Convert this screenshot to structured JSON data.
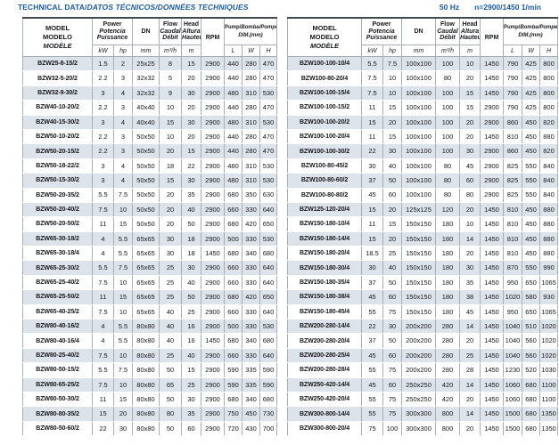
{
  "header": {
    "title_en": "TECHNICAL DATA/",
    "title_intl": "DATOS TÉCNICOS/DONNÉES TECHNIQUES",
    "frequency": "50 Hz",
    "speed": "n=2900/1450 1/min"
  },
  "colors": {
    "accent_blue": "#1a5a9e",
    "row_stripe": "#dce3ea"
  },
  "columns": {
    "model": {
      "en": "MODEL",
      "es": "MODELO",
      "fr": "MODÈLE"
    },
    "power": {
      "en": "Power",
      "es": "Potencia",
      "fr": "Puissance",
      "units": [
        "kW",
        "hp"
      ]
    },
    "dn": {
      "label": "DN",
      "unit": "mm"
    },
    "flow": {
      "en": "Flow",
      "es": "Caudal",
      "fr": "Débit",
      "unit": "m³/h"
    },
    "head": {
      "en": "Head",
      "es": "Altura",
      "fr": "Hauteur",
      "unit": "m"
    },
    "rpm": {
      "label": "RPM"
    },
    "dim": {
      "en": "Pump/",
      "intl": "Bomba/Pompe",
      "sub": "DIM.(mm)",
      "units": [
        "L",
        "W",
        "H"
      ]
    }
  },
  "tables": [
    {
      "name": "left",
      "rows": [
        [
          "BZW25-8-15/2",
          "1.5",
          "2",
          "25x25",
          "8",
          "15",
          "2900",
          "440",
          "280",
          "470"
        ],
        [
          "BZW32-5-20/2",
          "2.2",
          "3",
          "32x32",
          "5",
          "20",
          "2900",
          "440",
          "280",
          "470"
        ],
        [
          "BZW32-9-30/2",
          "3",
          "4",
          "32x32",
          "9",
          "30",
          "2900",
          "480",
          "310",
          "530"
        ],
        [
          "BZW40-10-20/2",
          "2.2",
          "3",
          "40x40",
          "10",
          "20",
          "2900",
          "440",
          "280",
          "470"
        ],
        [
          "BZW40-15-30/2",
          "3",
          "4",
          "40x40",
          "15",
          "30",
          "2900",
          "480",
          "310",
          "530"
        ],
        [
          "BZW50-10-20/2",
          "2.2",
          "3",
          "50x50",
          "10",
          "20",
          "2900",
          "440",
          "280",
          "470"
        ],
        [
          "BZW50-20-15/2",
          "2.2",
          "3",
          "50x50",
          "20",
          "15",
          "2900",
          "440",
          "280",
          "470"
        ],
        [
          "BZW50-18-22/2",
          "3",
          "4",
          "50x50",
          "18",
          "22",
          "2900",
          "480",
          "310",
          "530"
        ],
        [
          "BZW50-15-30/2",
          "3",
          "4",
          "50x50",
          "15",
          "30",
          "2900",
          "480",
          "310",
          "530"
        ],
        [
          "BZW50-20-35/2",
          "5.5",
          "7.5",
          "50x50",
          "20",
          "35",
          "2900",
          "680",
          "350",
          "630"
        ],
        [
          "BZW50-20-40/2",
          "7.5",
          "10",
          "50x50",
          "20",
          "40",
          "2900",
          "660",
          "330",
          "640"
        ],
        [
          "BZW50-20-50/2",
          "11",
          "15",
          "50x50",
          "20",
          "50",
          "2900",
          "680",
          "420",
          "650"
        ],
        [
          "BZW65-30-18/2",
          "4",
          "5.5",
          "65x65",
          "30",
          "18",
          "2900",
          "500",
          "330",
          "530"
        ],
        [
          "BZW65-30-18/4",
          "4",
          "5.5",
          "65x65",
          "30",
          "18",
          "1450",
          "680",
          "340",
          "680"
        ],
        [
          "BZW65-25-30/2",
          "5.5",
          "7.5",
          "65x65",
          "25",
          "30",
          "2900",
          "660",
          "330",
          "640"
        ],
        [
          "BZW65-25-40/2",
          "7.5",
          "10",
          "65x65",
          "25",
          "40",
          "2900",
          "660",
          "330",
          "640"
        ],
        [
          "BZW65-25-50/2",
          "11",
          "15",
          "65x65",
          "25",
          "50",
          "2900",
          "680",
          "420",
          "650"
        ],
        [
          "BZW65-40-25/2",
          "7.5",
          "10",
          "65x65",
          "40",
          "25",
          "2900",
          "660",
          "330",
          "640"
        ],
        [
          "BZW80-40-16/2",
          "4",
          "5.5",
          "80x80",
          "40",
          "16",
          "2900",
          "500",
          "330",
          "530"
        ],
        [
          "BZW80-40-16/4",
          "4",
          "5.5",
          "80x80",
          "40",
          "16",
          "1450",
          "680",
          "340",
          "680"
        ],
        [
          "BZW80-25-40/2",
          "7.5",
          "10",
          "80x80",
          "25",
          "40",
          "2900",
          "660",
          "330",
          "640"
        ],
        [
          "BZW80-50-15/2",
          "5.5",
          "7.5",
          "80x80",
          "50",
          "15",
          "2900",
          "590",
          "335",
          "590"
        ],
        [
          "BZW80-65-25/2",
          "7.5",
          "10",
          "80x80",
          "65",
          "25",
          "2900",
          "590",
          "335",
          "590"
        ],
        [
          "BZW80-50-30/2",
          "11",
          "15",
          "80x80",
          "50",
          "30",
          "2900",
          "680",
          "340",
          "680"
        ],
        [
          "BZW80-80-35/2",
          "15",
          "20",
          "80x80",
          "80",
          "35",
          "2900",
          "750",
          "450",
          "730"
        ],
        [
          "BZW80-50-60/2",
          "22",
          "30",
          "80x80",
          "50",
          "60",
          "2900",
          "720",
          "430",
          "700"
        ]
      ]
    },
    {
      "name": "right",
      "rows": [
        [
          "BZW100-100-10/4",
          "5.5",
          "7.5",
          "100x100",
          "100",
          "10",
          "1450",
          "790",
          "425",
          "800"
        ],
        [
          "BZW100-80-20/4",
          "7.5",
          "10",
          "100x100",
          "80",
          "20",
          "1450",
          "790",
          "425",
          "800"
        ],
        [
          "BZW100-100-15/4",
          "7.5",
          "10",
          "100x100",
          "100",
          "15",
          "1450",
          "790",
          "425",
          "800"
        ],
        [
          "BZW100-100-15/2",
          "11",
          "15",
          "100x100",
          "100",
          "15",
          "2900",
          "790",
          "425",
          "800"
        ],
        [
          "BZW100-100-20/2",
          "15",
          "20",
          "100x100",
          "100",
          "20",
          "2900",
          "860",
          "450",
          "820"
        ],
        [
          "BZW100-100-20/4",
          "11",
          "15",
          "100x100",
          "100",
          "20",
          "1450",
          "810",
          "450",
          "880"
        ],
        [
          "BZW100-100-30/2",
          "22",
          "30",
          "100x100",
          "100",
          "30",
          "2900",
          "860",
          "450",
          "820"
        ],
        [
          "BZW100-80-45/2",
          "30",
          "40",
          "100x100",
          "80",
          "45",
          "2900",
          "825",
          "550",
          "840"
        ],
        [
          "BZW100-80-60/2",
          "37",
          "50",
          "100x100",
          "80",
          "60",
          "2900",
          "825",
          "550",
          "840"
        ],
        [
          "BZW100-80-80/2",
          "45",
          "60",
          "100x100",
          "80",
          "80",
          "2900",
          "825",
          "550",
          "840"
        ],
        [
          "BZW125-120-20/4",
          "15",
          "20",
          "125x125",
          "120",
          "20",
          "1450",
          "810",
          "450",
          "880"
        ],
        [
          "BZW150-180-10/4",
          "11",
          "15",
          "150x150",
          "180",
          "10",
          "1450",
          "810",
          "450",
          "880"
        ],
        [
          "BZW150-180-14/4",
          "15",
          "20",
          "150x150",
          "180",
          "14",
          "1450",
          "810",
          "450",
          "880"
        ],
        [
          "BZW150-180-20/4",
          "18.5",
          "25",
          "150x150",
          "180",
          "20",
          "1450",
          "810",
          "450",
          "880"
        ],
        [
          "BZW150-180-30/4",
          "30",
          "40",
          "150x150",
          "180",
          "30",
          "1450",
          "870",
          "550",
          "990"
        ],
        [
          "BZW150-180-35/4",
          "37",
          "50",
          "150x150",
          "180",
          "35",
          "1450",
          "950",
          "650",
          "1065"
        ],
        [
          "BZW150-180-38/4",
          "45",
          "60",
          "150x150",
          "180",
          "38",
          "1450",
          "1020",
          "580",
          "930"
        ],
        [
          "BZW150-180-45/4",
          "55",
          "75",
          "150x150",
          "180",
          "45",
          "1450",
          "950",
          "650",
          "1065"
        ],
        [
          "BZW200-280-14/4",
          "22",
          "30",
          "200x200",
          "280",
          "14",
          "1450",
          "1040",
          "510",
          "1020"
        ],
        [
          "BZW200-280-20/4",
          "37",
          "50",
          "200x200",
          "280",
          "20",
          "1450",
          "1040",
          "560",
          "1020"
        ],
        [
          "BZW200-280-25/4",
          "45",
          "60",
          "200x200",
          "280",
          "25",
          "1450",
          "1040",
          "560",
          "1020"
        ],
        [
          "BZW200-280-28/4",
          "55",
          "75",
          "200x200",
          "280",
          "28",
          "1450",
          "1230",
          "520",
          "1030"
        ],
        [
          "BZW250-420-14/4",
          "45",
          "60",
          "250x250",
          "420",
          "14",
          "1450",
          "1060",
          "680",
          "1100"
        ],
        [
          "BZW250-420-20/4",
          "55",
          "75",
          "250x250",
          "420",
          "20",
          "1450",
          "1060",
          "680",
          "1100"
        ],
        [
          "BZW300-800-14/4",
          "55",
          "75",
          "300x300",
          "800",
          "14",
          "1450",
          "1500",
          "680",
          "1350"
        ],
        [
          "BZW300-800-20/4",
          "75",
          "100",
          "300x300",
          "800",
          "20",
          "1450",
          "1500",
          "680",
          "1350"
        ]
      ]
    }
  ]
}
